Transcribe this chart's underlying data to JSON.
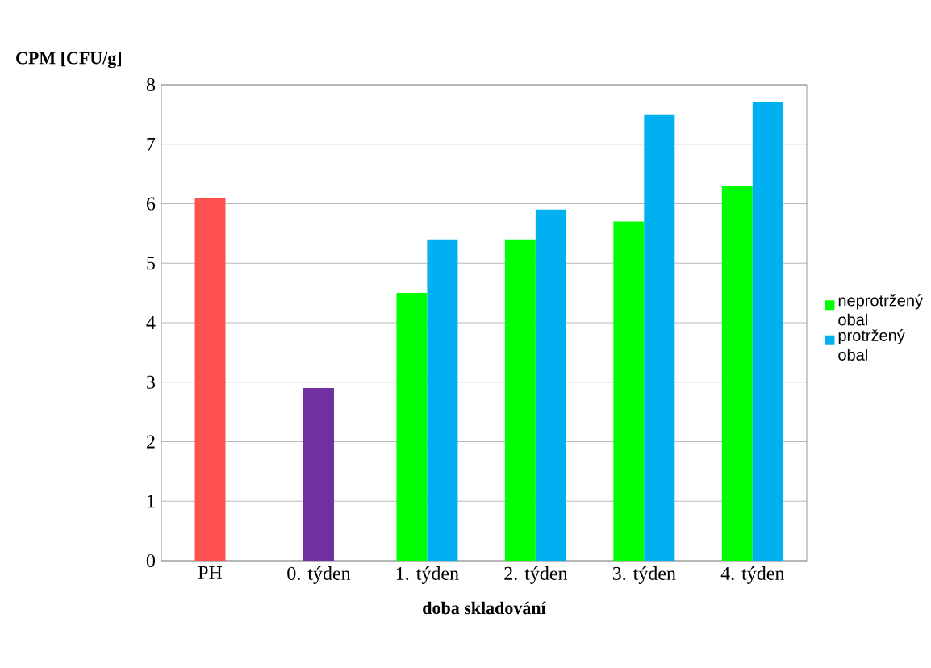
{
  "chart_data": {
    "type": "bar",
    "xlabel": "doba skladování",
    "ylabel": "CPM [CFU/g]",
    "categories": [
      "PH",
      "0. týden",
      "1. týden",
      "2. týden",
      "3. týden",
      "4. týden"
    ],
    "series": [
      {
        "colors": [
          "#ff5050",
          "#7030a0",
          "#ff5050",
          "#ff5050",
          "#ff5050",
          "#ff5050"
        ],
        "values": [
          6.1,
          2.9,
          null,
          null,
          null,
          null
        ]
      },
      {
        "name": "neprotržený obal",
        "color": "#00ff00",
        "values": [
          null,
          null,
          4.5,
          5.4,
          5.7,
          6.3
        ]
      },
      {
        "name": "protržený obal",
        "color": "#00b0f0",
        "values": [
          null,
          null,
          5.4,
          5.9,
          7.5,
          7.7
        ]
      }
    ],
    "ylim": [
      0,
      8
    ],
    "yticks": [
      0,
      1,
      2,
      3,
      4,
      5,
      6,
      7,
      8
    ],
    "grid": "y",
    "legend": "right"
  }
}
